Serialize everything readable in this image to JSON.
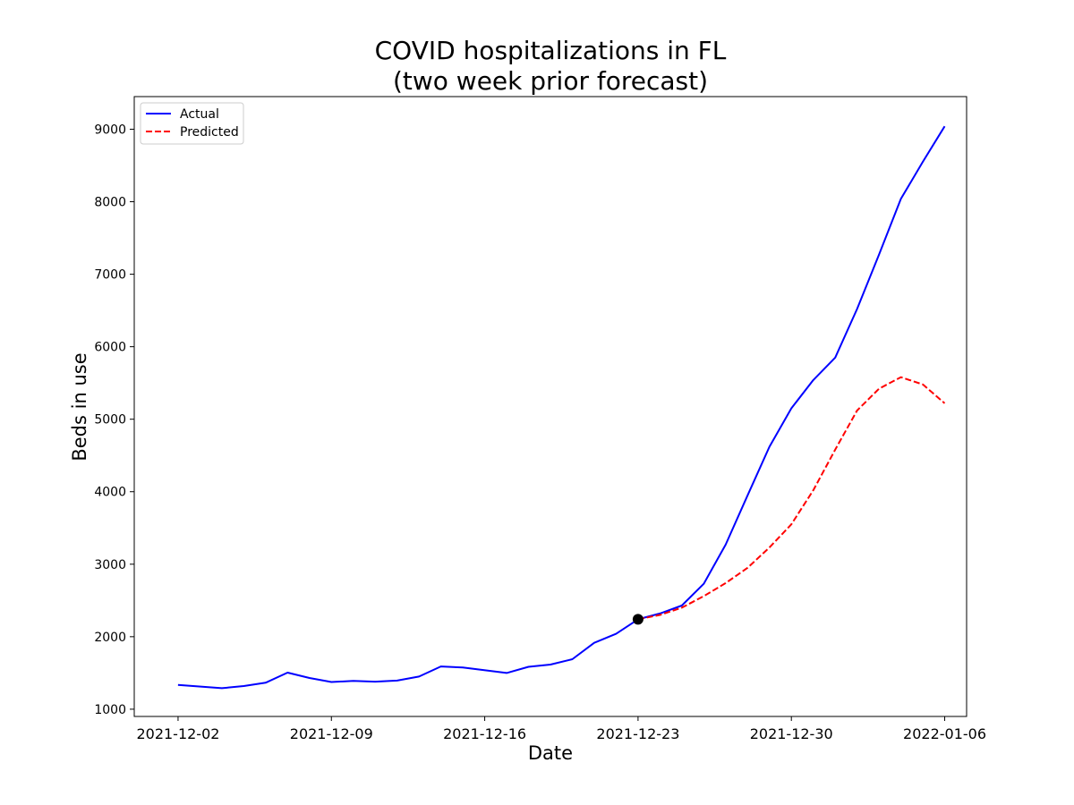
{
  "chart_data": {
    "type": "line",
    "title_line1": "COVID hospitalizations in FL",
    "title_line2": "(two week prior forecast)",
    "xlabel": "Date",
    "ylabel": "Beds in use",
    "x_range": [
      "2021-11-30",
      "2022-01-07"
    ],
    "ylim": [
      900,
      9450
    ],
    "x_ticks": [
      "2021-12-02",
      "2021-12-09",
      "2021-12-16",
      "2021-12-23",
      "2021-12-30",
      "2022-01-06"
    ],
    "y_ticks": [
      1000,
      2000,
      3000,
      4000,
      5000,
      6000,
      7000,
      8000,
      9000
    ],
    "legend_position": "upper-left",
    "grid": false,
    "series": [
      {
        "name": "Actual",
        "color": "#0000ff",
        "style": "solid",
        "x": [
          "2021-12-02",
          "2021-12-04",
          "2021-12-05",
          "2021-12-06",
          "2021-12-07",
          "2021-12-08",
          "2021-12-09",
          "2021-12-10",
          "2021-12-11",
          "2021-12-12",
          "2021-12-13",
          "2021-12-14",
          "2021-12-15",
          "2021-12-17",
          "2021-12-18",
          "2021-12-19",
          "2021-12-20",
          "2021-12-21",
          "2021-12-22",
          "2021-12-23",
          "2021-12-24",
          "2021-12-25",
          "2021-12-26",
          "2021-12-27",
          "2021-12-28",
          "2021-12-29",
          "2021-12-30",
          "2021-12-31",
          "2022-01-01",
          "2022-01-02",
          "2022-01-03",
          "2022-01-04",
          "2022-01-05",
          "2022-01-06"
        ],
        "values": [
          1335,
          1290,
          1320,
          1365,
          1505,
          1430,
          1375,
          1390,
          1380,
          1395,
          1450,
          1590,
          1575,
          1500,
          1585,
          1615,
          1690,
          1915,
          2040,
          2240,
          2320,
          2430,
          2730,
          3270,
          3950,
          4620,
          5150,
          5540,
          5850,
          6520,
          7270,
          8040,
          8550,
          9040
        ]
      },
      {
        "name": "Predicted",
        "color": "#ff0000",
        "style": "dashed",
        "x": [
          "2021-12-23",
          "2021-12-24",
          "2021-12-25",
          "2021-12-26",
          "2021-12-27",
          "2021-12-28",
          "2021-12-29",
          "2021-12-30",
          "2021-12-31",
          "2022-01-01",
          "2022-01-02",
          "2022-01-03",
          "2022-01-04",
          "2022-01-05",
          "2022-01-06"
        ],
        "values": [
          2240,
          2300,
          2400,
          2560,
          2740,
          2950,
          3230,
          3550,
          4020,
          4580,
          5120,
          5420,
          5580,
          5480,
          5220
        ]
      }
    ],
    "marker": {
      "x": "2021-12-23",
      "y": 2240,
      "color": "#000000"
    }
  }
}
